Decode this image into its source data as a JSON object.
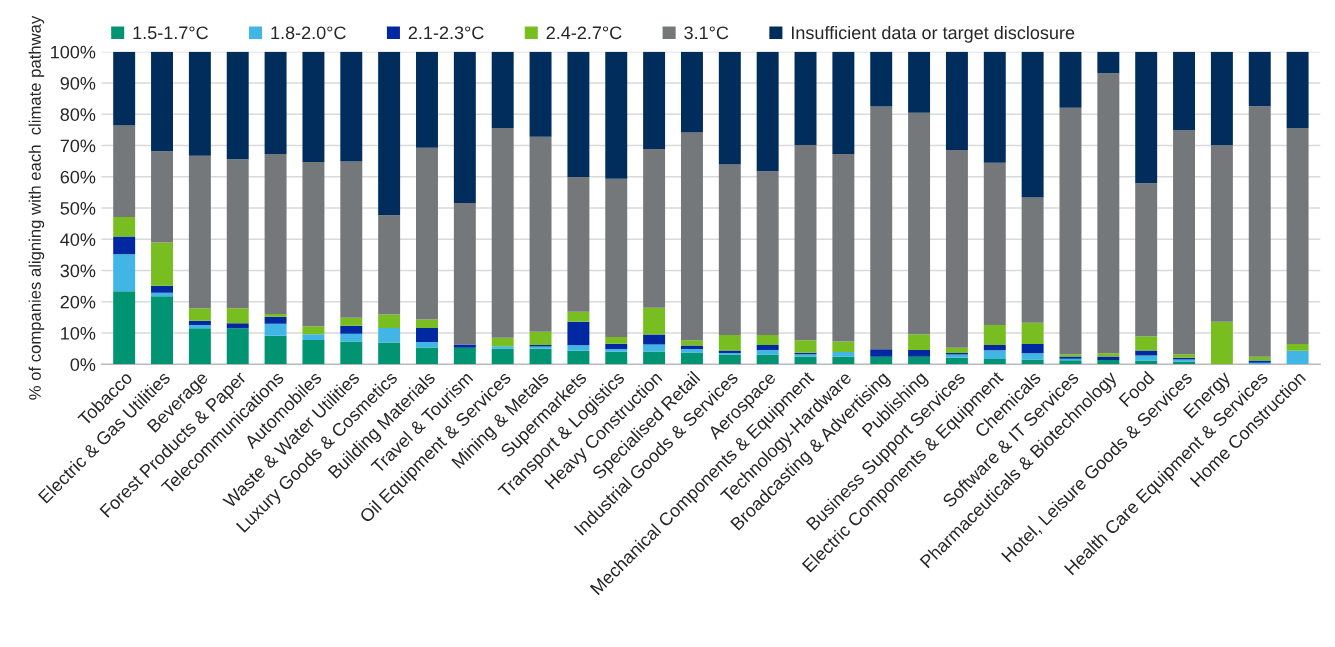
{
  "chart_data": {
    "type": "bar",
    "stacked": true,
    "ylabel": "% of companies aligning with each  climate pathway",
    "categories": [
      "Tobacco",
      "Electric & Gas Utilities",
      "Beverage",
      "Forest Products & Paper",
      "Telecommunications",
      "Automobiles",
      "Waste & Water Utilities",
      "Luxury Goods & Cosmetics",
      "Building Materials",
      "Travel & Tourism",
      "Oil Equipment & Services",
      "Mining & Metals",
      "Supermarkets",
      "Transport & Logistics",
      "Heavy Construction",
      "Specialised Retail",
      "Industrial Goods & Services",
      "Aerospace",
      "Mechanical Components & Equipment",
      "Technology-Hardware",
      "Broadcasting & Advertising",
      "Publishing",
      "Business Support Services",
      "Electric Components & Equipment",
      "Chemicals",
      "Software & IT Services",
      "Pharmaceuticals & Biotechnology",
      "Food",
      "Hotel, Leisure Goods & Services",
      "Energy",
      "Health Care Equipment & Services",
      "Home Construction"
    ],
    "series": [
      {
        "name": "1.5-1.7°C",
        "color": "#009473",
        "values": [
          23.4,
          21.8,
          11.5,
          11.5,
          9.1,
          7.8,
          7.3,
          7.0,
          5.4,
          5.3,
          5.0,
          5.0,
          4.3,
          4.0,
          4.1,
          3.8,
          3.1,
          3.1,
          2.5,
          2.5,
          2.4,
          2.4,
          2.1,
          1.7,
          1.5,
          1.3,
          1.4,
          1.2,
          0.9,
          0,
          0,
          0
        ]
      },
      {
        "name": "1.8-2.0°C",
        "color": "#41b6e6",
        "values": [
          11.8,
          1.1,
          1.1,
          0,
          3.9,
          1.8,
          2.5,
          4.6,
          1.7,
          0,
          0.8,
          0.7,
          1.8,
          0.9,
          2.2,
          1.1,
          0.5,
          1.5,
          0.7,
          1.4,
          0,
          0,
          1.0,
          2.8,
          2.0,
          0.5,
          0,
          1.6,
          0.6,
          0,
          0.5,
          4.3
        ]
      },
      {
        "name": "2.1-2.3°C",
        "color": "#0028a0",
        "values": [
          5.7,
          2.2,
          1.3,
          1.6,
          2.2,
          0,
          2.5,
          0,
          4.5,
          1.0,
          0,
          0.5,
          7.5,
          1.7,
          3.2,
          1.1,
          0.8,
          1.6,
          0.5,
          0,
          2.4,
          2.2,
          0.5,
          1.7,
          3.0,
          0.7,
          1.1,
          1.6,
          0.6,
          0,
          0.7,
          0
        ]
      },
      {
        "name": "2.4-2.7°C",
        "color": "#78be20",
        "values": [
          6.2,
          13.9,
          4.0,
          4.8,
          0.9,
          2.6,
          2.6,
          4.3,
          2.7,
          0,
          2.7,
          4.2,
          3.2,
          2.1,
          8.6,
          1.7,
          5.0,
          3.2,
          4.0,
          3.4,
          0,
          5.0,
          1.7,
          6.4,
          6.8,
          0.7,
          1.0,
          4.6,
          1.1,
          13.6,
          1.2,
          2.2
        ]
      },
      {
        "name": "3.1°C",
        "color": "#75787b",
        "values": [
          29.3,
          29.2,
          48.8,
          47.7,
          51.2,
          52.5,
          50.0,
          31.8,
          55.0,
          45.3,
          67.1,
          62.4,
          43.1,
          50.7,
          50.8,
          66.5,
          54.5,
          52.4,
          62.5,
          60.0,
          77.7,
          70.9,
          63.3,
          51.9,
          40.1,
          78.9,
          89.6,
          48.9,
          71.8,
          56.5,
          80.2,
          69.1
        ]
      },
      {
        "name": "Insufficient data or target disclosure",
        "color": "#002d5c",
        "values": [
          23.6,
          31.8,
          33.3,
          34.4,
          32.7,
          35.3,
          35.1,
          52.3,
          30.7,
          48.4,
          24.4,
          27.2,
          40.1,
          40.6,
          31.1,
          25.8,
          36.1,
          38.2,
          29.8,
          32.7,
          17.5,
          19.5,
          31.4,
          35.5,
          46.6,
          17.9,
          6.9,
          42.1,
          25.0,
          29.9,
          17.4,
          24.4
        ]
      }
    ],
    "ylim": [
      0,
      100
    ],
    "yticks": [
      {
        "value": 0,
        "label": "0%"
      },
      {
        "value": 10,
        "label": "10%"
      },
      {
        "value": 20,
        "label": "20%"
      },
      {
        "value": 30,
        "label": "30%"
      },
      {
        "value": 40,
        "label": "40%"
      },
      {
        "value": 50,
        "label": "50%"
      },
      {
        "value": 60,
        "label": "60%"
      },
      {
        "value": 70,
        "label": "70%"
      },
      {
        "value": 80,
        "label": "80%"
      },
      {
        "value": 90,
        "label": "90%"
      },
      {
        "value": 100,
        "label": "100%"
      }
    ],
    "grid": "y",
    "legend": "top"
  }
}
